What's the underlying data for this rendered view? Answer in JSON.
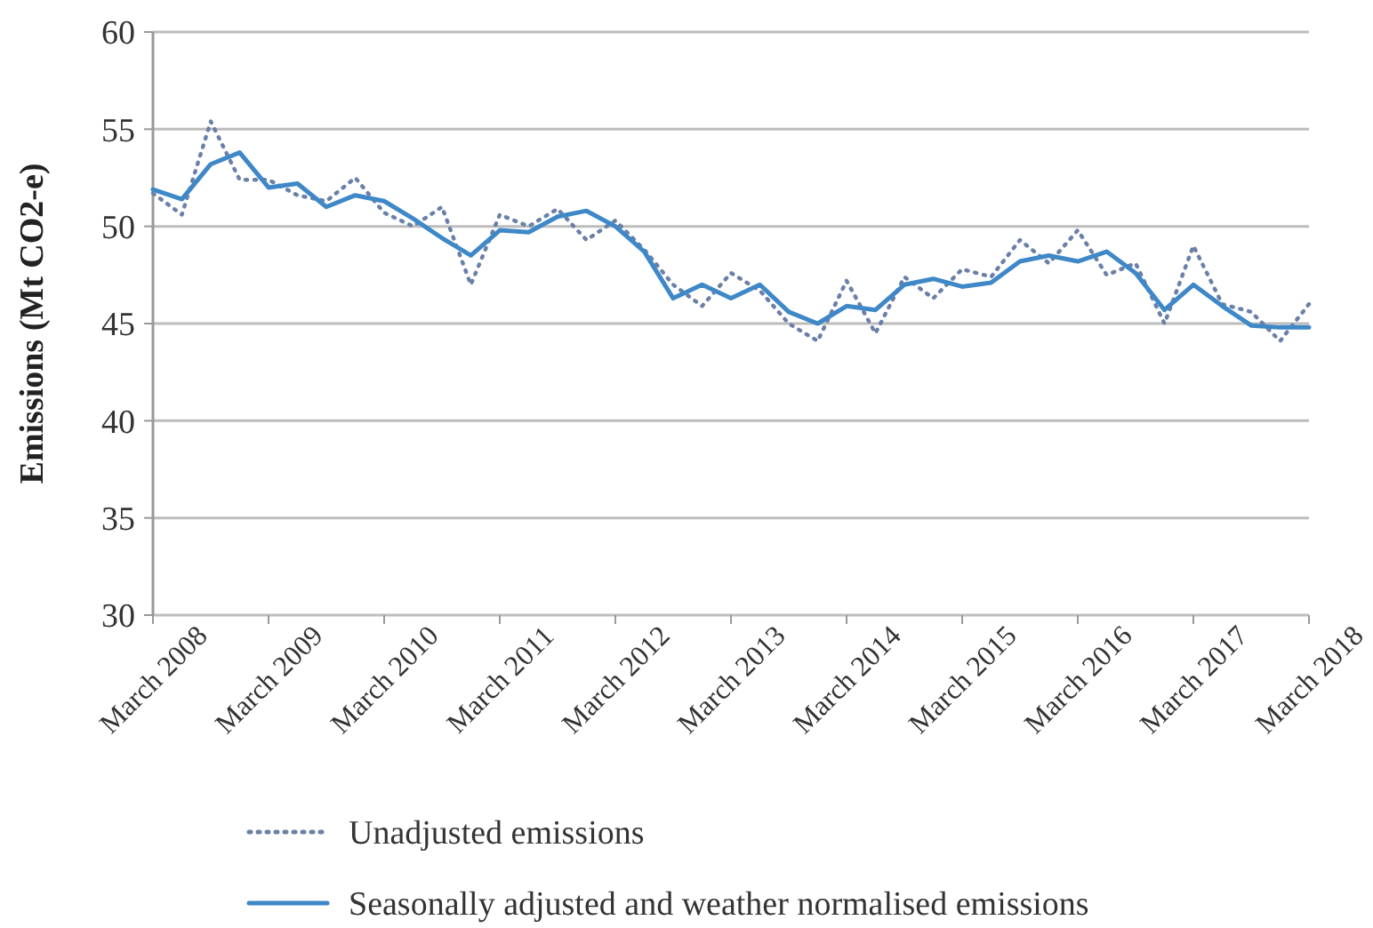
{
  "chart_data": {
    "type": "line",
    "ylabel": "Emissions (Mt CO2-e)",
    "categories": [
      "March 2008",
      null,
      null,
      null,
      "March 2009",
      null,
      null,
      null,
      "March 2010",
      null,
      null,
      null,
      "March 2011",
      null,
      null,
      null,
      "March 2012",
      null,
      null,
      null,
      "March 2013",
      null,
      null,
      null,
      "March 2014",
      null,
      null,
      null,
      "March 2015",
      null,
      null,
      null,
      "March 2016",
      null,
      null,
      null,
      "March 2017",
      null,
      null,
      null,
      "March 2018"
    ],
    "series": [
      {
        "name": "Unadjusted emissions",
        "color": "#6b80a8",
        "line_style": "dotted",
        "values": [
          51.7,
          50.6,
          55.4,
          52.4,
          52.4,
          51.6,
          51.3,
          52.5,
          50.7,
          50.0,
          51.0,
          47.0,
          50.6,
          50.0,
          50.9,
          49.3,
          50.3,
          48.8,
          47.0,
          45.9,
          47.6,
          46.7,
          45.0,
          44.1,
          47.2,
          44.5,
          47.4,
          46.3,
          47.8,
          47.4,
          49.3,
          48.1,
          49.8,
          47.5,
          48.1,
          45.0,
          49.0,
          46.0,
          45.6,
          44.1,
          46.0
        ]
      },
      {
        "name": "Seasonally adjusted and weather normalised emissions",
        "color": "#3f88c8",
        "line_style": "solid",
        "values": [
          51.9,
          51.4,
          53.2,
          53.8,
          52.0,
          52.2,
          51.0,
          51.6,
          51.3,
          50.4,
          49.4,
          48.5,
          49.8,
          49.7,
          50.5,
          50.8,
          50.0,
          48.7,
          46.3,
          47.0,
          46.3,
          47.0,
          45.6,
          45.0,
          45.9,
          45.7,
          47.0,
          47.3,
          46.9,
          47.1,
          48.2,
          48.5,
          48.2,
          48.7,
          47.6,
          45.7,
          47.0,
          45.9,
          44.9,
          44.8,
          44.8
        ]
      }
    ],
    "ylim": [
      30,
      60
    ],
    "yticks": [
      30,
      35,
      40,
      45,
      50,
      55,
      60
    ],
    "grid": "y",
    "legend": "bottom"
  }
}
